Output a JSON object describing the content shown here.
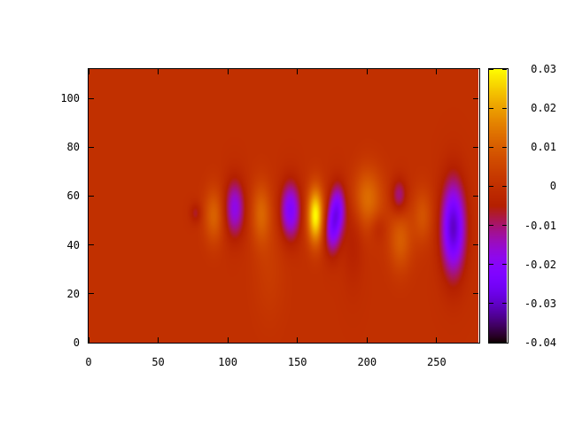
{
  "chart_data": {
    "type": "heatmap",
    "title": "",
    "xlabel": "",
    "ylabel": "",
    "xlim": [
      0,
      280
    ],
    "ylim": [
      0,
      112
    ],
    "x_ticks": [
      "0",
      "50",
      "100",
      "150",
      "200",
      "250"
    ],
    "x_tick_values": [
      0,
      50,
      100,
      150,
      200,
      250
    ],
    "y_ticks": [
      "0",
      "20",
      "40",
      "60",
      "80",
      "100"
    ],
    "y_tick_values": [
      0,
      20,
      40,
      60,
      80,
      100
    ],
    "colorbar": {
      "range": [
        -0.04,
        0.03
      ],
      "ticks": [
        "0.03",
        "0.02",
        "0.01",
        "0",
        "-0.01",
        "-0.02",
        "-0.03",
        "-0.04"
      ],
      "tick_values": [
        0.03,
        0.02,
        0.01,
        0,
        -0.01,
        -0.02,
        -0.03,
        -0.04
      ],
      "colormap": "gnuplot rgbformulae 7,5,15 (black-purple-red-orange-yellow)"
    },
    "background_value": 0,
    "features": [
      {
        "x": 77,
        "y": 53,
        "value": -0.007,
        "sx": 3,
        "sy": 3
      },
      {
        "x": 90,
        "y": 52,
        "value": 0.011,
        "sx": 5,
        "sy": 8
      },
      {
        "x": 105,
        "y": 55,
        "value": -0.018,
        "sx": 5,
        "sy": 8
      },
      {
        "x": 124,
        "y": 53,
        "value": 0.011,
        "sx": 5,
        "sy": 9
      },
      {
        "x": 145,
        "y": 54,
        "value": -0.022,
        "sx": 5,
        "sy": 8
      },
      {
        "x": 163,
        "y": 52,
        "value": 0.03,
        "sx": 4,
        "sy": 8
      },
      {
        "x": 179,
        "y": 55,
        "value": -0.02,
        "sx": 4,
        "sy": 7
      },
      {
        "x": 175,
        "y": 46,
        "value": -0.018,
        "sx": 4,
        "sy": 7
      },
      {
        "x": 200,
        "y": 59,
        "value": 0.013,
        "sx": 8,
        "sy": 9
      },
      {
        "x": 208,
        "y": 47,
        "value": -0.004,
        "sx": 4,
        "sy": 4
      },
      {
        "x": 223,
        "y": 60,
        "value": -0.012,
        "sx": 4,
        "sy": 5
      },
      {
        "x": 224,
        "y": 42,
        "value": 0.01,
        "sx": 6,
        "sy": 9
      },
      {
        "x": 240,
        "y": 52,
        "value": 0.008,
        "sx": 5,
        "sy": 8
      },
      {
        "x": 262,
        "y": 47,
        "value": -0.03,
        "sx": 6,
        "sy": 13
      },
      {
        "x": 190,
        "y": 45,
        "value": -0.005,
        "sx": 5,
        "sy": 14
      },
      {
        "x": 130,
        "y": 30,
        "value": 0.003,
        "sx": 8,
        "sy": 15
      }
    ]
  }
}
